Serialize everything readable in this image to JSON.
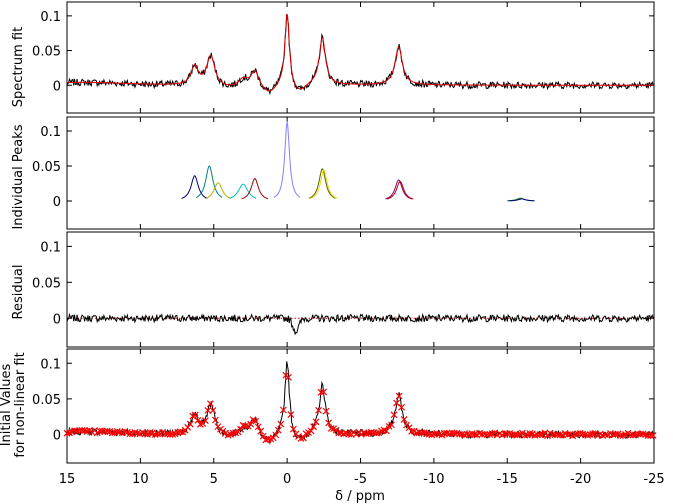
{
  "chart_data": [
    {
      "type": "line",
      "ylabel": "Spectrum fit",
      "xlim": [
        15,
        -25
      ],
      "ylim": [
        -0.04,
        0.12
      ],
      "yticks": [
        0,
        0.05,
        0.1
      ],
      "ytick_labels": [
        "0",
        "0.05",
        "0.1"
      ],
      "peaks": [
        {
          "ppm": 6.3,
          "height": 0.028,
          "width": 0.3
        },
        {
          "ppm": 5.2,
          "height": 0.045,
          "width": 0.35
        },
        {
          "ppm": 3.0,
          "height": 0.012,
          "width": 0.4
        },
        {
          "ppm": 2.2,
          "height": 0.022,
          "width": 0.3
        },
        {
          "ppm": 0.0,
          "height": 0.105,
          "width": 0.18
        },
        {
          "ppm": -2.4,
          "height": 0.068,
          "width": 0.25
        },
        {
          "ppm": -7.6,
          "height": 0.055,
          "width": 0.3
        }
      ],
      "series": [
        {
          "role": "spectrum",
          "color": "#000000"
        },
        {
          "role": "fit",
          "color": "#e00000"
        }
      ]
    },
    {
      "type": "line",
      "ylabel": "Individual Peaks",
      "xlim": [
        15,
        -25
      ],
      "ylim": [
        -0.04,
        0.12
      ],
      "yticks": [
        0,
        0.05,
        0.1
      ],
      "ytick_labels": [
        "0",
        "0.05",
        "0.1"
      ],
      "peaks": [
        {
          "ppm": 6.3,
          "height": 0.036,
          "width": 0.3,
          "color": "#000080"
        },
        {
          "ppm": 5.3,
          "height": 0.05,
          "width": 0.3,
          "color": "#008080"
        },
        {
          "ppm": 4.7,
          "height": 0.026,
          "width": 0.35,
          "color": "#b0b000"
        },
        {
          "ppm": 3.0,
          "height": 0.024,
          "width": 0.4,
          "color": "#00c0c0"
        },
        {
          "ppm": 2.2,
          "height": 0.032,
          "width": 0.3,
          "color": "#a00000"
        },
        {
          "ppm": 0.0,
          "height": 0.112,
          "width": 0.2,
          "color": "#8080ff"
        },
        {
          "ppm": -2.4,
          "height": 0.046,
          "width": 0.28,
          "color": "#606000"
        },
        {
          "ppm": -2.5,
          "height": 0.044,
          "width": 0.28,
          "color": "#e0e000"
        },
        {
          "ppm": -7.6,
          "height": 0.03,
          "width": 0.3,
          "color": "#800080"
        },
        {
          "ppm": -7.7,
          "height": 0.028,
          "width": 0.3,
          "color": "#c00000"
        },
        {
          "ppm": -15.9,
          "height": 0.004,
          "width": 0.3,
          "color": "#008000"
        },
        {
          "ppm": -16.0,
          "height": 0.003,
          "width": 0.3,
          "color": "#000080"
        }
      ]
    },
    {
      "type": "line",
      "ylabel": "Residual",
      "xlim": [
        15,
        -25
      ],
      "ylim": [
        -0.04,
        0.12
      ],
      "yticks": [
        0,
        0.05,
        0.1
      ],
      "ytick_labels": [
        "0",
        "0.05",
        "0.1"
      ],
      "series": [
        {
          "role": "residual",
          "color": "#000000"
        },
        {
          "role": "zero-line",
          "color": "#e00000",
          "style": "dotted"
        }
      ]
    },
    {
      "type": "scatter",
      "ylabel_lines": [
        "Initial Values",
        "for non-linear fit"
      ],
      "xlim": [
        15,
        -25
      ],
      "ylim": [
        -0.04,
        0.12
      ],
      "yticks": [
        0,
        0.05,
        0.1
      ],
      "ytick_labels": [
        "0",
        "0.05",
        "0.1"
      ],
      "xticks": [
        15,
        10,
        5,
        0,
        -5,
        -10,
        -15,
        -20,
        -25
      ],
      "xtick_labels": [
        "15",
        "10",
        "5",
        "0",
        "-5",
        "-10",
        "-15",
        "-20",
        "-25"
      ],
      "xlabel": "δ / ppm",
      "series": [
        {
          "role": "spectrum",
          "color": "#000000"
        },
        {
          "role": "initial-values",
          "color": "#ff0000",
          "marker": "x"
        }
      ]
    }
  ]
}
